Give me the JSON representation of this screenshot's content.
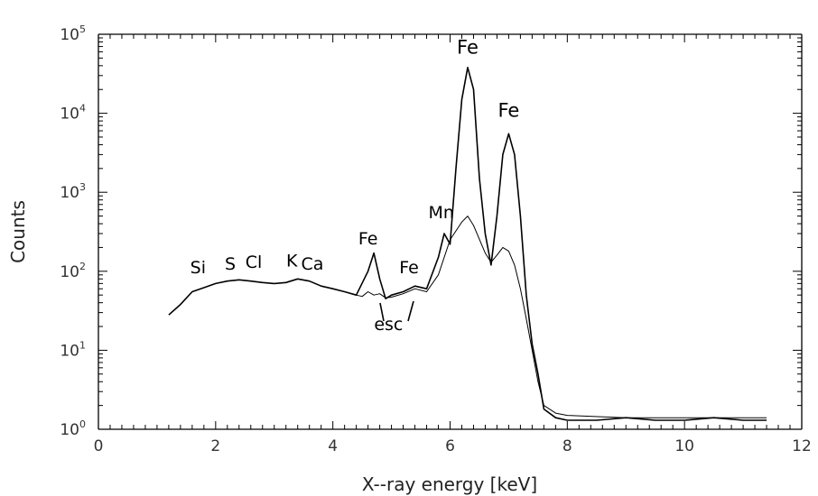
{
  "chart_data": {
    "type": "line",
    "xlabel": "X--ray energy [keV]",
    "ylabel": "Counts",
    "xlim": [
      0,
      12
    ],
    "ylim": [
      1,
      100000
    ],
    "yscale": "log",
    "grid": false,
    "x_ticks": [
      "0",
      "2",
      "4",
      "6",
      "8",
      "10",
      "12"
    ],
    "y_ticks": [
      {
        "base": "10",
        "exp": "0"
      },
      {
        "base": "10",
        "exp": "1"
      },
      {
        "base": "10",
        "exp": "2"
      },
      {
        "base": "10",
        "exp": "3"
      },
      {
        "base": "10",
        "exp": "4"
      },
      {
        "base": "10",
        "exp": "5"
      }
    ],
    "series": [
      {
        "x": [
          1.2,
          1.4,
          1.6,
          1.8,
          2.0,
          2.2,
          2.4,
          2.6,
          2.8,
          3.0,
          3.2,
          3.4,
          3.6,
          3.8,
          4.0,
          4.2,
          4.4,
          4.6,
          4.7,
          4.8,
          4.9,
          5.0,
          5.2,
          5.4,
          5.6,
          5.8,
          5.9,
          6.0,
          6.1,
          6.2,
          6.3,
          6.4,
          6.5,
          6.6,
          6.7,
          6.8,
          6.9,
          7.0,
          7.1,
          7.2,
          7.3,
          7.4,
          7.5,
          7.6,
          7.8,
          8.0,
          8.5,
          9.0,
          9.5,
          10.0,
          10.5,
          11.0,
          11.4
        ],
        "y": [
          28,
          38,
          55,
          62,
          70,
          75,
          78,
          75,
          72,
          70,
          72,
          80,
          75,
          65,
          60,
          55,
          50,
          100,
          170,
          80,
          45,
          50,
          55,
          65,
          60,
          150,
          300,
          220,
          2000,
          15000,
          38000,
          20000,
          1500,
          300,
          120,
          500,
          3000,
          5500,
          3000,
          500,
          50,
          12,
          5,
          1.8,
          1.4,
          1.3,
          1.3,
          1.4,
          1.3,
          1.3,
          1.4,
          1.3,
          1.3
        ]
      },
      {
        "x": [
          4.4,
          4.5,
          4.6,
          4.7,
          4.8,
          4.9,
          5.0,
          5.2,
          5.4,
          5.6,
          5.8,
          6.0,
          6.2,
          6.3,
          6.4,
          6.6,
          6.7,
          6.8,
          6.9,
          7.0,
          7.1,
          7.2,
          7.3,
          7.4,
          7.5,
          7.6,
          7.8,
          8.0,
          9.0,
          10.0,
          11.0,
          11.4
        ],
        "y": [
          50,
          48,
          55,
          50,
          52,
          46,
          47,
          52,
          60,
          55,
          90,
          250,
          420,
          500,
          380,
          170,
          130,
          160,
          200,
          180,
          120,
          60,
          25,
          10,
          4,
          2.0,
          1.6,
          1.5,
          1.4,
          1.4,
          1.4,
          1.4
        ]
      }
    ],
    "annotations": [
      {
        "text": "Si",
        "x": 1.7,
        "y": 95
      },
      {
        "text": "S",
        "x": 2.25,
        "y": 105
      },
      {
        "text": "Cl",
        "x": 2.65,
        "y": 110
      },
      {
        "text": "K",
        "x": 3.3,
        "y": 115
      },
      {
        "text": "Ca",
        "x": 3.65,
        "y": 105
      },
      {
        "text": "Fe",
        "x": 4.6,
        "y": 220
      },
      {
        "text": "Fe",
        "x": 5.3,
        "y": 95
      },
      {
        "text": "Mn",
        "x": 5.85,
        "y": 470
      },
      {
        "text": "Fe",
        "x": 6.3,
        "y": 57000
      },
      {
        "text": "Fe",
        "x": 7.0,
        "y": 9000
      },
      {
        "text": "esc",
        "x": 4.95,
        "y": 18
      }
    ]
  }
}
